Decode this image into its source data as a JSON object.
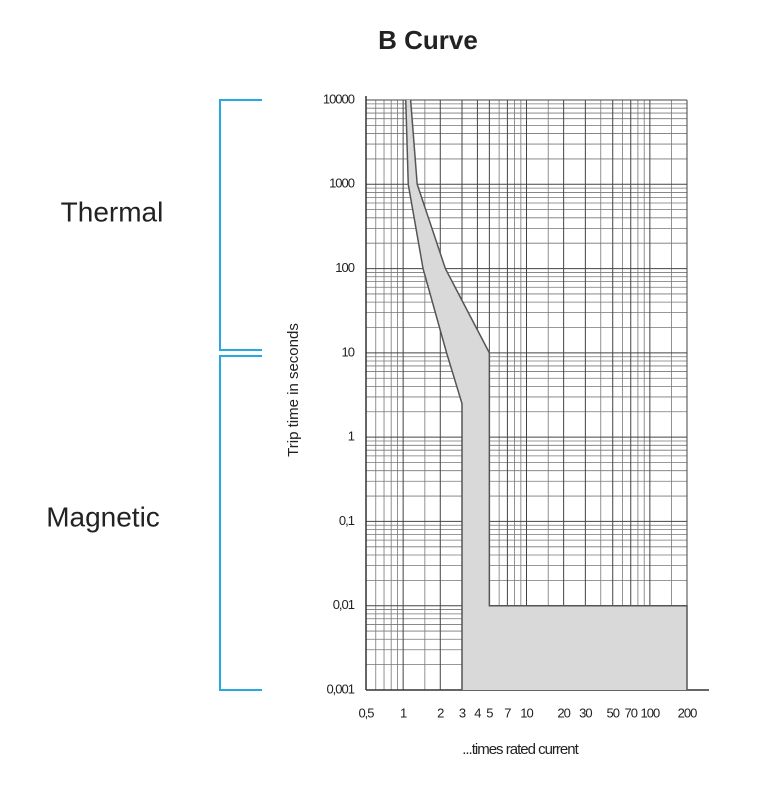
{
  "chart_data": {
    "type": "band",
    "title": "B Curve",
    "y_label": "Trip time in seconds",
    "x_label": "...times rated current",
    "annotations": [
      "Thermal",
      "Magnetic"
    ],
    "log_x": true,
    "log_y": true,
    "grid": true,
    "fill": "#d9d9d9",
    "line_color": "#555555",
    "bracket_color": "#29a8e0",
    "xlim": [
      0.5,
      200
    ],
    "ylim": [
      0.001,
      10000
    ],
    "xticks": [
      {
        "value": 0.5,
        "label": "0,5"
      },
      1,
      2,
      3,
      4,
      5,
      7,
      10,
      20,
      30,
      50,
      70,
      100,
      200
    ],
    "yticks": [
      10000,
      1000,
      100,
      10,
      1,
      {
        "value": 0.1,
        "label": "0,1"
      },
      {
        "value": 0.01,
        "label": "0,01"
      },
      {
        "value": 0.001,
        "label": "0,001"
      }
    ],
    "xminor": [
      0.6,
      0.7,
      0.8,
      0.9,
      1.5,
      6,
      8,
      9,
      15,
      40,
      60,
      80,
      90,
      150
    ],
    "yminor": [
      0.002,
      0.003,
      0.004,
      0.005,
      0.006,
      0.007,
      0.008,
      0.009,
      0.02,
      0.03,
      0.04,
      0.05,
      0.06,
      0.07,
      0.08,
      0.09,
      0.2,
      0.3,
      0.4,
      0.5,
      0.6,
      0.7,
      0.8,
      0.9,
      2,
      3,
      4,
      5,
      6,
      7,
      8,
      9,
      20,
      30,
      40,
      50,
      60,
      70,
      80,
      90,
      200,
      300,
      400,
      500,
      600,
      700,
      800,
      900,
      2000,
      3000,
      4000,
      5000,
      6000,
      7000,
      8000,
      9000
    ],
    "series": [
      {
        "x": [
          1.05,
          1.1,
          1.45,
          2.25,
          3,
          3
        ],
        "values": [
          10000,
          1000,
          100,
          10,
          2.5,
          0.001
        ]
      },
      {
        "x": [
          1.15,
          1.3,
          2.2,
          5,
          5,
          200,
          200
        ],
        "values": [
          10000,
          1000,
          100,
          10,
          0.01,
          0.01,
          0.001
        ]
      }
    ]
  }
}
